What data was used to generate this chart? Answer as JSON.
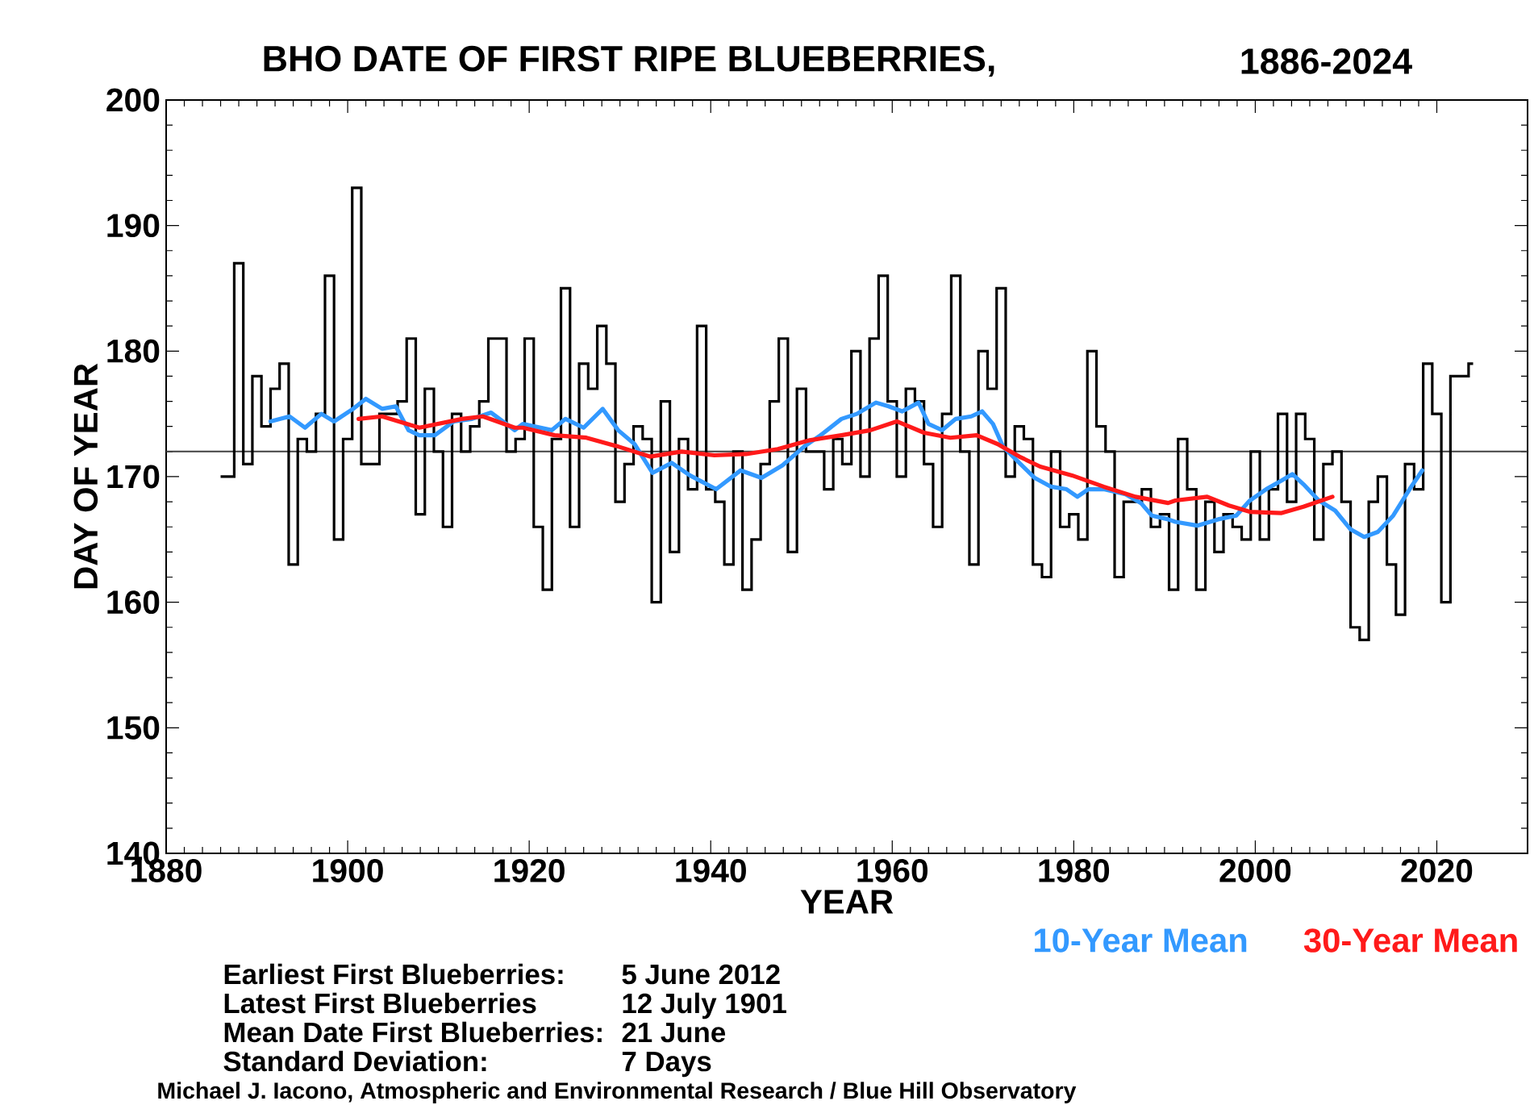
{
  "chart_data": {
    "type": "step",
    "title": "BHO DATE OF FIRST RIPE BLUEBERRIES,",
    "subtitle": "1886-2024",
    "xlabel": "YEAR",
    "ylabel": "DAY OF YEAR",
    "xlim": [
      1880,
      2030
    ],
    "xticks": [
      1880,
      1900,
      1920,
      1940,
      1960,
      1980,
      2000,
      2020
    ],
    "ylim": [
      140,
      200
    ],
    "yticks": [
      140,
      150,
      160,
      170,
      180,
      190,
      200
    ],
    "legend": "bottom right",
    "ref_lines": [
      {
        "axis": "y",
        "value": 172,
        "color": "#404040"
      }
    ],
    "series": [
      {
        "color": "#000000",
        "x": [
          1886,
          1887,
          1888,
          1889,
          1890,
          1891,
          1892,
          1893,
          1894,
          1895,
          1896,
          1897,
          1898,
          1899,
          1900,
          1901,
          1902,
          1903,
          1904,
          1905,
          1906,
          1907,
          1908,
          1909,
          1910,
          1911,
          1912,
          1913,
          1914,
          1915,
          1916,
          1917,
          1918,
          1919,
          1920,
          1921,
          1922,
          1923,
          1924,
          1925,
          1926,
          1927,
          1928,
          1929,
          1930,
          1931,
          1932,
          1933,
          1934,
          1935,
          1936,
          1937,
          1938,
          1939,
          1940,
          1941,
          1942,
          1943,
          1944,
          1945,
          1946,
          1947,
          1948,
          1949,
          1950,
          1951,
          1952,
          1953,
          1954,
          1955,
          1956,
          1957,
          1958,
          1959,
          1960,
          1961,
          1962,
          1963,
          1964,
          1965,
          1966,
          1967,
          1968,
          1969,
          1970,
          1971,
          1972,
          1973,
          1974,
          1975,
          1976,
          1977,
          1978,
          1979,
          1980,
          1981,
          1982,
          1983,
          1984,
          1985,
          1986,
          1987,
          1988,
          1989,
          1990,
          1991,
          1992,
          1993,
          1994,
          1995,
          1996,
          1997,
          1998,
          1999,
          2000,
          2001,
          2002,
          2003,
          2004,
          2005,
          2006,
          2007,
          2008,
          2009,
          2010,
          2011,
          2012,
          2013,
          2014,
          2015,
          2016,
          2017,
          2018,
          2019,
          2020,
          2021,
          2022,
          2023,
          2024
        ],
        "values": [
          170,
          170,
          187,
          171,
          178,
          174,
          177,
          179,
          163,
          173,
          172,
          175,
          186,
          165,
          173,
          193,
          171,
          171,
          175,
          175,
          176,
          181,
          167,
          177,
          172,
          166,
          175,
          172,
          174,
          176,
          181,
          181,
          172,
          173,
          181,
          166,
          161,
          173,
          185,
          166,
          179,
          177,
          182,
          179,
          168,
          171,
          174,
          173,
          160,
          176,
          164,
          173,
          169,
          182,
          169,
          168,
          163,
          172,
          161,
          165,
          171,
          176,
          181,
          164,
          177,
          172,
          172,
          169,
          173,
          171,
          180,
          170,
          181,
          186,
          176,
          170,
          177,
          176,
          171,
          166,
          175,
          186,
          172,
          163,
          180,
          177,
          185,
          170,
          174,
          173,
          163,
          162,
          172,
          166,
          167,
          165,
          180,
          174,
          172,
          162,
          168,
          168,
          169,
          166,
          167,
          161,
          173,
          169,
          161,
          168,
          164,
          167,
          166,
          165,
          172,
          165,
          169,
          175,
          168,
          175,
          173,
          165,
          171,
          172,
          168,
          158,
          157,
          168,
          170,
          163,
          159,
          171,
          169,
          179,
          175,
          160,
          178,
          178,
          179
        ]
      },
      {
        "type": "line",
        "name": "10-Year Mean",
        "color": "#3399ff",
        "x": [
          1891.5,
          1893.6,
          1895.3,
          1897.1,
          1898.5,
          1900.6,
          1902.0,
          1903.8,
          1905.3,
          1906.7,
          1907.9,
          1909.6,
          1911.7,
          1913.7,
          1915.8,
          1918.4,
          1919.3,
          1922.5,
          1924.0,
          1926.0,
          1928.1,
          1929.8,
          1931.6,
          1933.6,
          1935.7,
          1937.7,
          1940.6,
          1943.3,
          1945.6,
          1947.9,
          1950.3,
          1952.1,
          1954.4,
          1956.1,
          1958.2,
          1959.6,
          1961.1,
          1962.9,
          1964.0,
          1965.5,
          1967.0,
          1968.7,
          1969.9,
          1971.1,
          1972.2,
          1974.0,
          1975.7,
          1977.5,
          1979.2,
          1980.4,
          1981.6,
          1983.3,
          1985.7,
          1987.4,
          1988.6,
          1990.4,
          1991.2,
          1993.6,
          1995.9,
          1997.9,
          1999.4,
          2001.2,
          2002.9,
          2004.1,
          2005.3,
          2007.0,
          2008.8,
          2010.5,
          2012.0,
          2013.5,
          2015.2,
          2017.0,
          2018.4
        ],
        "values": [
          174.4,
          174.8,
          173.9,
          175.0,
          174.4,
          175.4,
          176.2,
          175.4,
          175.6,
          173.7,
          173.3,
          173.3,
          174.4,
          174.6,
          175.1,
          173.7,
          174.2,
          173.7,
          174.6,
          173.9,
          175.4,
          173.7,
          172.6,
          170.3,
          171.1,
          170.1,
          169.0,
          170.5,
          169.9,
          170.9,
          172.4,
          173.3,
          174.6,
          175.0,
          175.9,
          175.6,
          175.2,
          175.9,
          174.2,
          173.7,
          174.6,
          174.8,
          175.2,
          174.2,
          172.4,
          171.1,
          169.9,
          169.2,
          169.0,
          168.4,
          169.0,
          169.0,
          168.6,
          167.9,
          166.9,
          166.6,
          166.4,
          166.1,
          166.6,
          166.9,
          168.1,
          169.0,
          169.7,
          170.2,
          169.4,
          168.1,
          167.3,
          165.8,
          165.2,
          165.6,
          166.9,
          169.0,
          170.5
        ]
      },
      {
        "type": "line",
        "name": "30-Year Mean",
        "color": "#ff1a1a",
        "x": [
          1901.2,
          1903.8,
          1907.9,
          1912.6,
          1914.9,
          1918.4,
          1919.3,
          1922.8,
          1926.3,
          1929.8,
          1933.3,
          1936.8,
          1940.4,
          1943.9,
          1947.4,
          1950.9,
          1954.4,
          1957.6,
          1960.5,
          1963.5,
          1966.4,
          1969.3,
          1971.6,
          1974.0,
          1976.3,
          1979.8,
          1983.3,
          1986.8,
          1990.4,
          1991.2,
          1994.7,
          1997.1,
          1999.4,
          2002.9,
          2005.3,
          2008.5
        ],
        "values": [
          174.6,
          174.8,
          173.9,
          174.6,
          174.8,
          173.9,
          173.9,
          173.3,
          173.1,
          172.4,
          171.6,
          172.0,
          171.7,
          171.8,
          172.2,
          172.9,
          173.3,
          173.7,
          174.4,
          173.5,
          173.1,
          173.3,
          172.6,
          171.6,
          170.8,
          170.1,
          169.2,
          168.4,
          167.9,
          168.1,
          168.4,
          167.7,
          167.2,
          167.1,
          167.6,
          168.4
        ]
      }
    ],
    "annotations": [
      "Earliest First Blueberries:",
      "Latest First Blueberries",
      "Mean Date First Blueberries:",
      "Standard Deviation:",
      "5 June 2012",
      "12 July 1901",
      "21 June",
      "7 Days",
      "Michael J. Iacono, Atmospheric and Environmental Research / Blue Hill Observatory"
    ]
  }
}
